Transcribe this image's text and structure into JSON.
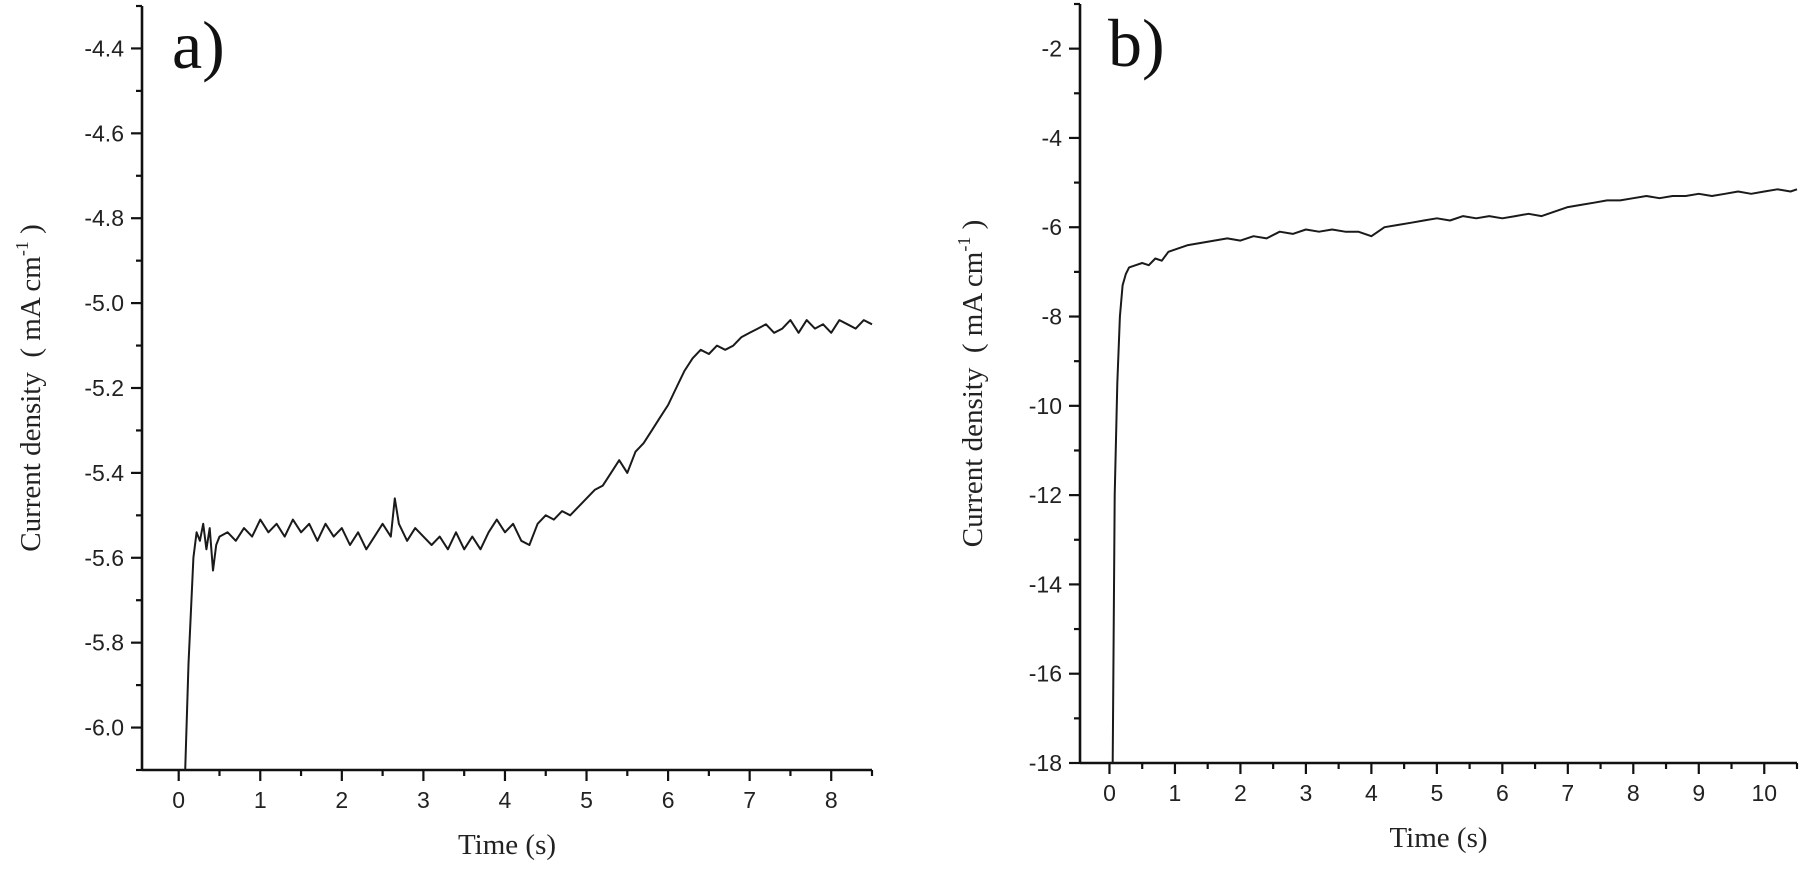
{
  "chart_data": [
    {
      "type": "line",
      "panel_label": "a)",
      "xlabel": "Time (s)",
      "ylabel_main": "Current density  ( mA cm",
      "ylabel_sup": "-1",
      "ylabel_close": " )",
      "xlim": [
        -0.45,
        8.5
      ],
      "ylim": [
        -6.1,
        -4.3
      ],
      "x_ticks": [
        0,
        1,
        2,
        3,
        4,
        5,
        6,
        7,
        8
      ],
      "x_tick_labels": [
        "0",
        "1",
        "2",
        "3",
        "4",
        "5",
        "6",
        "7",
        "8"
      ],
      "y_ticks": [
        -6.0,
        -5.8,
        -5.6,
        -5.4,
        -5.2,
        -5.0,
        -4.8,
        -4.6,
        -4.4
      ],
      "y_tick_labels": [
        "-6.0",
        "-5.8",
        "-5.6",
        "-5.4",
        "-5.2",
        "-5.0",
        "-4.8",
        "-4.6",
        "-4.4"
      ],
      "series": [
        {
          "x": [
            0.08,
            0.12,
            0.18,
            0.22,
            0.26,
            0.3,
            0.34,
            0.38,
            0.42,
            0.46,
            0.5,
            0.6,
            0.7,
            0.8,
            0.9,
            1.0,
            1.1,
            1.2,
            1.3,
            1.4,
            1.5,
            1.6,
            1.7,
            1.8,
            1.9,
            2.0,
            2.1,
            2.2,
            2.3,
            2.4,
            2.5,
            2.6,
            2.65,
            2.7,
            2.8,
            2.9,
            3.0,
            3.1,
            3.2,
            3.3,
            3.4,
            3.5,
            3.6,
            3.7,
            3.8,
            3.9,
            4.0,
            4.1,
            4.2,
            4.3,
            4.4,
            4.5,
            4.6,
            4.7,
            4.8,
            4.9,
            5.0,
            5.1,
            5.2,
            5.3,
            5.4,
            5.5,
            5.6,
            5.7,
            5.8,
            5.9,
            6.0,
            6.1,
            6.2,
            6.3,
            6.4,
            6.5,
            6.6,
            6.7,
            6.8,
            6.9,
            7.0,
            7.1,
            7.2,
            7.3,
            7.4,
            7.5,
            7.6,
            7.7,
            7.8,
            7.9,
            8.0,
            8.1,
            8.2,
            8.3,
            8.4,
            8.5
          ],
          "values": [
            -6.1,
            -5.85,
            -5.6,
            -5.54,
            -5.56,
            -5.52,
            -5.58,
            -5.53,
            -5.63,
            -5.57,
            -5.55,
            -5.54,
            -5.56,
            -5.53,
            -5.55,
            -5.51,
            -5.54,
            -5.52,
            -5.55,
            -5.51,
            -5.54,
            -5.52,
            -5.56,
            -5.52,
            -5.55,
            -5.53,
            -5.57,
            -5.54,
            -5.58,
            -5.55,
            -5.52,
            -5.55,
            -5.46,
            -5.52,
            -5.56,
            -5.53,
            -5.55,
            -5.57,
            -5.55,
            -5.58,
            -5.54,
            -5.58,
            -5.55,
            -5.58,
            -5.54,
            -5.51,
            -5.54,
            -5.52,
            -5.56,
            -5.57,
            -5.52,
            -5.5,
            -5.51,
            -5.49,
            -5.5,
            -5.48,
            -5.46,
            -5.44,
            -5.43,
            -5.4,
            -5.37,
            -5.4,
            -5.35,
            -5.33,
            -5.3,
            -5.27,
            -5.24,
            -5.2,
            -5.16,
            -5.13,
            -5.11,
            -5.12,
            -5.1,
            -5.11,
            -5.1,
            -5.08,
            -5.07,
            -5.06,
            -5.05,
            -5.07,
            -5.06,
            -5.04,
            -5.07,
            -5.04,
            -5.06,
            -5.05,
            -5.07,
            -5.04,
            -5.05,
            -5.06,
            -5.04,
            -5.05
          ]
        }
      ]
    },
    {
      "type": "line",
      "panel_label": "b)",
      "xlabel": "Time (s)",
      "ylabel_main": "Current density  ( mA cm",
      "ylabel_sup": "-1",
      "ylabel_close": " )",
      "xlim": [
        -0.45,
        10.5
      ],
      "ylim": [
        -18,
        -1
      ],
      "x_ticks": [
        0,
        1,
        2,
        3,
        4,
        5,
        6,
        7,
        8,
        9,
        10
      ],
      "x_tick_labels": [
        "0",
        "1",
        "2",
        "3",
        "4",
        "5",
        "6",
        "7",
        "8",
        "9",
        "10"
      ],
      "y_ticks": [
        -18,
        -16,
        -14,
        -12,
        -10,
        -8,
        -6,
        -4,
        -2
      ],
      "y_tick_labels": [
        "-18",
        "-16",
        "-14",
        "-12",
        "-10",
        "-8",
        "-6",
        "-4",
        "-2"
      ],
      "series": [
        {
          "x": [
            0.05,
            0.08,
            0.12,
            0.16,
            0.2,
            0.25,
            0.3,
            0.4,
            0.5,
            0.6,
            0.7,
            0.8,
            0.9,
            1.0,
            1.2,
            1.4,
            1.6,
            1.8,
            2.0,
            2.2,
            2.4,
            2.6,
            2.8,
            3.0,
            3.2,
            3.4,
            3.6,
            3.8,
            4.0,
            4.2,
            4.4,
            4.6,
            4.8,
            5.0,
            5.2,
            5.4,
            5.6,
            5.8,
            6.0,
            6.2,
            6.4,
            6.6,
            6.8,
            7.0,
            7.2,
            7.4,
            7.6,
            7.8,
            8.0,
            8.2,
            8.4,
            8.6,
            8.8,
            9.0,
            9.2,
            9.4,
            9.6,
            9.8,
            10.0,
            10.2,
            10.4,
            10.5
          ],
          "values": [
            -18,
            -12,
            -9.5,
            -8,
            -7.3,
            -7.05,
            -6.9,
            -6.85,
            -6.8,
            -6.85,
            -6.7,
            -6.75,
            -6.55,
            -6.5,
            -6.4,
            -6.35,
            -6.3,
            -6.25,
            -6.3,
            -6.2,
            -6.25,
            -6.1,
            -6.15,
            -6.05,
            -6.1,
            -6.05,
            -6.1,
            -6.1,
            -6.2,
            -6.0,
            -5.95,
            -5.9,
            -5.85,
            -5.8,
            -5.85,
            -5.75,
            -5.8,
            -5.75,
            -5.8,
            -5.75,
            -5.7,
            -5.75,
            -5.65,
            -5.55,
            -5.5,
            -5.45,
            -5.4,
            -5.4,
            -5.35,
            -5.3,
            -5.35,
            -5.3,
            -5.3,
            -5.25,
            -5.3,
            -5.25,
            -5.2,
            -5.25,
            -5.2,
            -5.15,
            -5.2,
            -5.15
          ]
        }
      ]
    }
  ]
}
